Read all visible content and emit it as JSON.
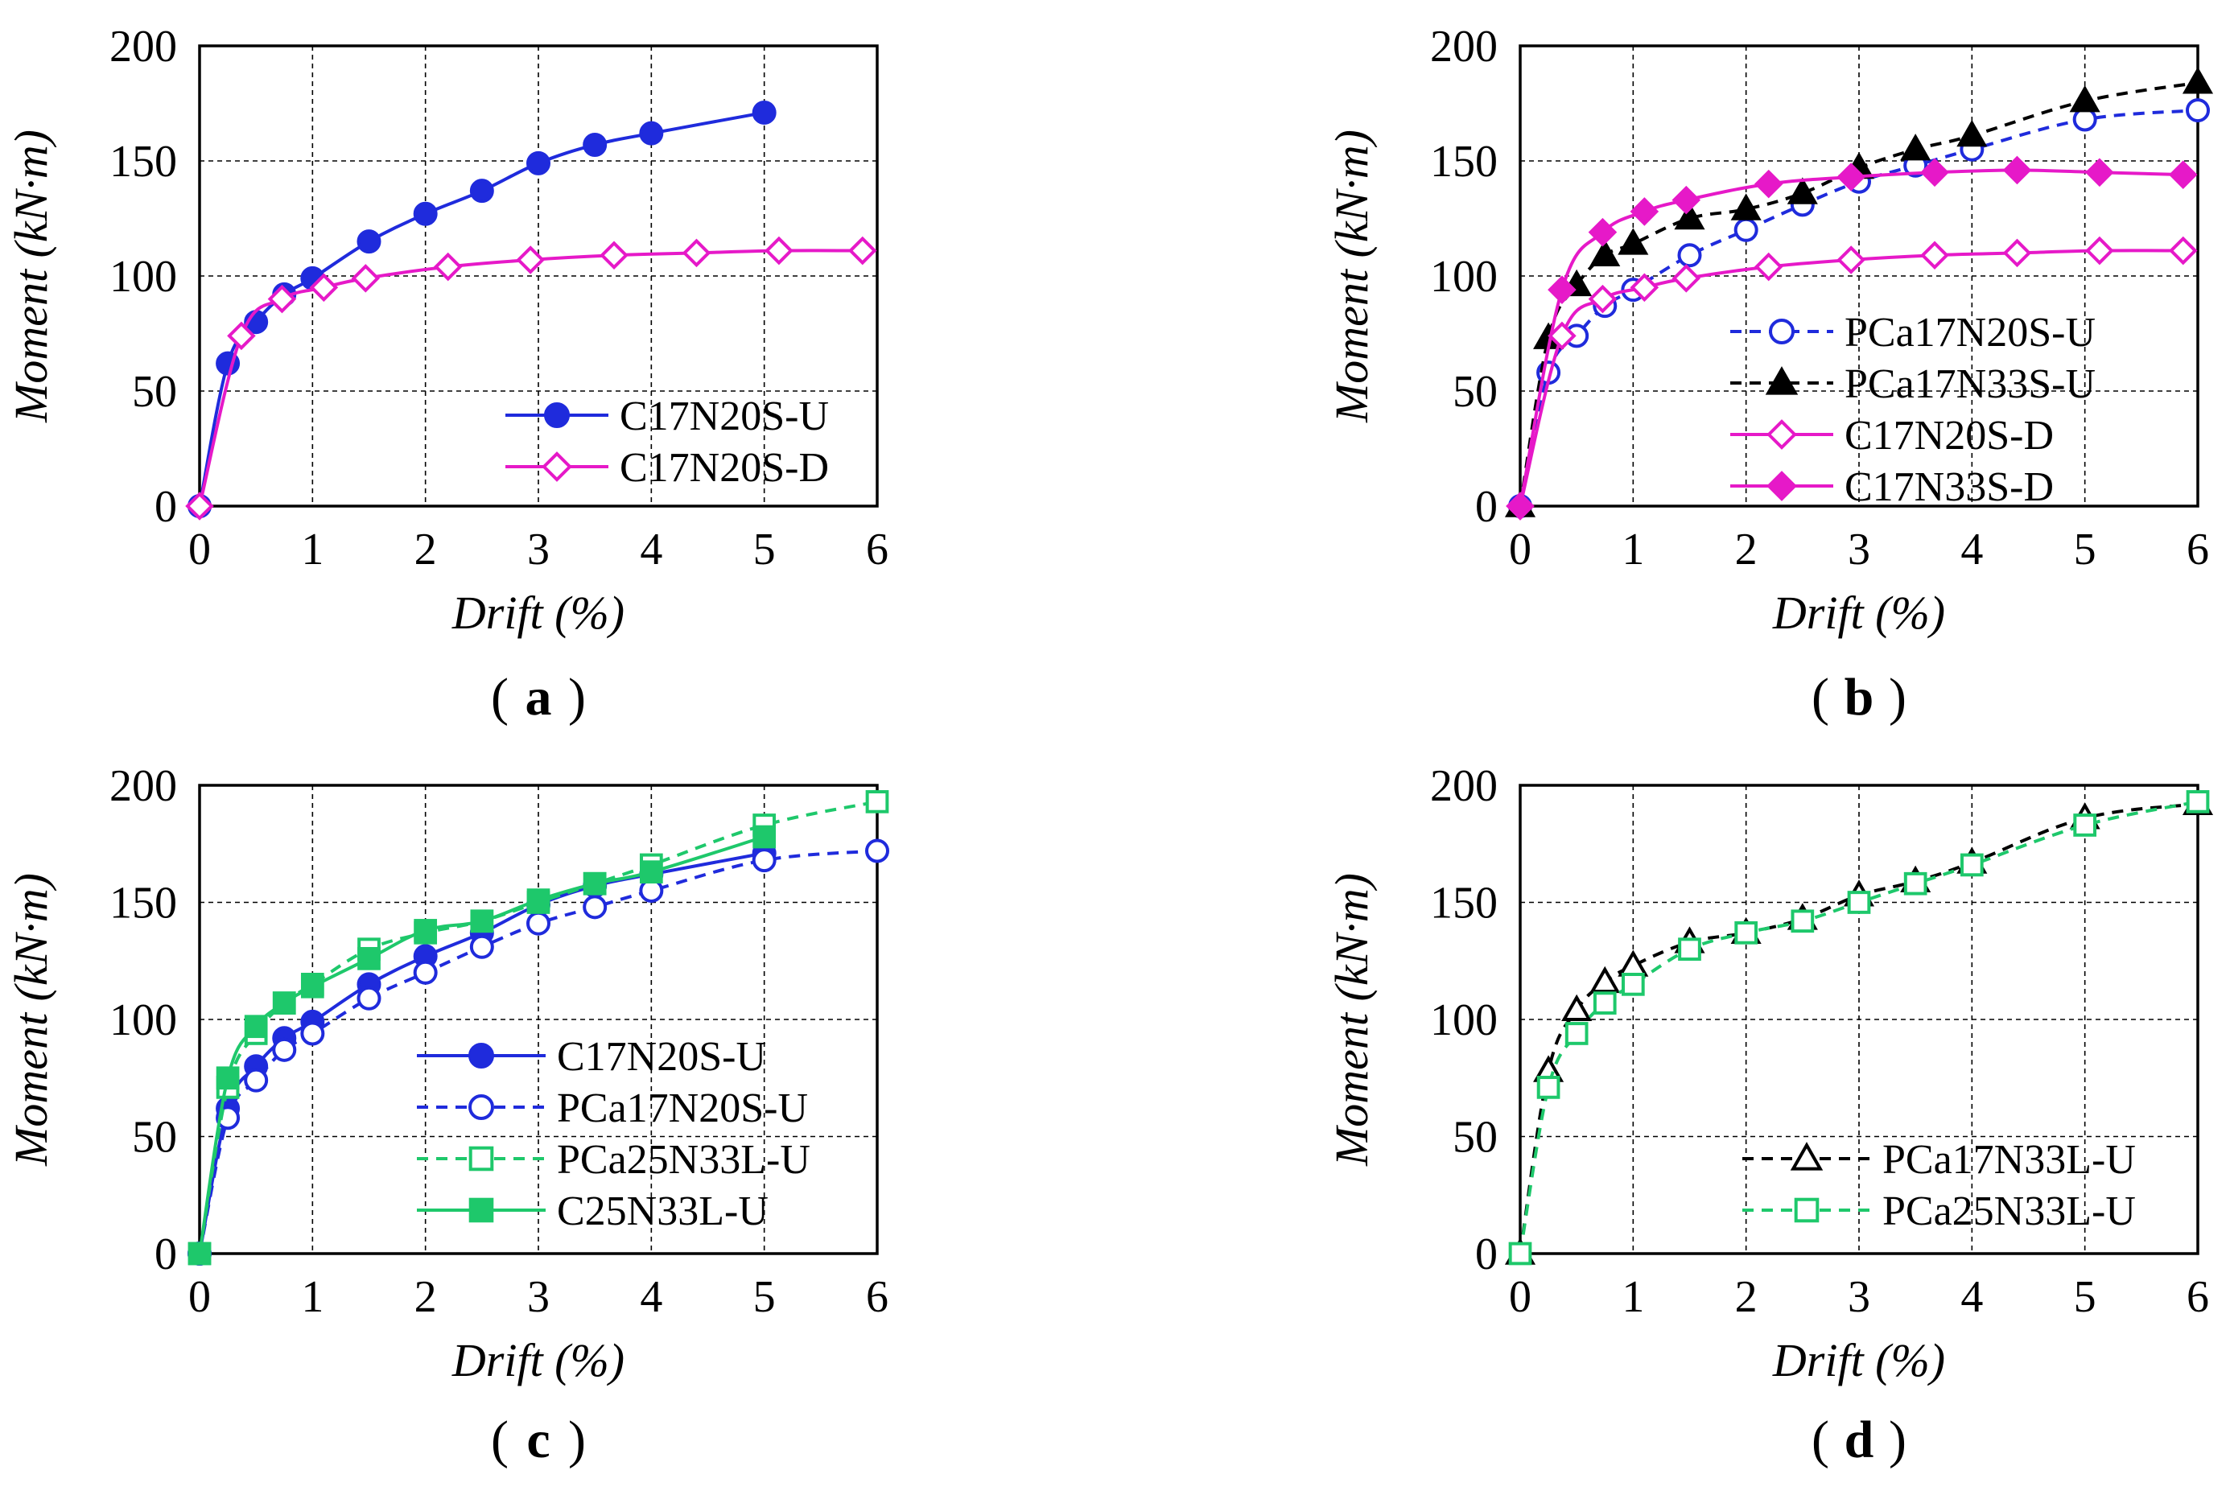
{
  "figure": {
    "background": "#ffffff",
    "colors": {
      "blue": "#1f2bdc",
      "magenta": "#e619c8",
      "black": "#000000",
      "green": "#1ec86b"
    }
  },
  "chart_data": [
    {
      "id": "a",
      "type": "line",
      "panel_label": "a",
      "xlabel": "Drift (%)",
      "ylabel": "Moment (kN·m)",
      "xlim": [
        0,
        6
      ],
      "ylim": [
        0,
        200
      ],
      "xticks": [
        "0",
        "1",
        "2",
        "3",
        "4",
        "5",
        "6"
      ],
      "yticks": [
        "0",
        "50",
        "100",
        "150",
        "200"
      ],
      "grid": true,
      "legend_position": "bottom-right",
      "series": [
        {
          "name": "C17N20S-U",
          "color": "#1f2bdc",
          "dash": "solid",
          "marker": "circle",
          "fill": "filled",
          "x": [
            0,
            0.25,
            0.5,
            0.75,
            1,
            1.5,
            2,
            2.5,
            3,
            3.5,
            4,
            5
          ],
          "y": [
            0,
            62,
            80,
            92,
            99,
            115,
            127,
            137,
            149,
            157,
            162,
            171
          ]
        },
        {
          "name": "C17N20S-D",
          "color": "#e619c8",
          "dash": "solid",
          "marker": "diamond",
          "fill": "open",
          "x": [
            0,
            0.37,
            0.73,
            1.1,
            1.47,
            2.2,
            2.93,
            3.67,
            4.4,
            5.13,
            5.87
          ],
          "y": [
            0,
            74,
            90,
            95,
            99,
            104,
            107,
            109,
            110,
            111,
            111
          ]
        }
      ]
    },
    {
      "id": "b",
      "type": "line",
      "panel_label": "b",
      "xlabel": "Drift (%)",
      "ylabel": "Moment (kN·m)",
      "xlim": [
        0,
        6
      ],
      "ylim": [
        0,
        200
      ],
      "xticks": [
        "0",
        "1",
        "2",
        "3",
        "4",
        "5",
        "6"
      ],
      "yticks": [
        "0",
        "50",
        "100",
        "150",
        "200"
      ],
      "grid": true,
      "legend_position": "bottom-right",
      "series": [
        {
          "name": "PCa17N20S-U",
          "color": "#1f2bdc",
          "dash": "dashed",
          "marker": "circle",
          "fill": "open",
          "x": [
            0,
            0.25,
            0.5,
            0.75,
            1,
            1.5,
            2,
            2.5,
            3,
            3.5,
            4,
            5,
            6
          ],
          "y": [
            0,
            58,
            74,
            87,
            94,
            109,
            120,
            131,
            141,
            148,
            155,
            168,
            172
          ]
        },
        {
          "name": "PCa17N33S-U",
          "color": "#000000",
          "dash": "dashed",
          "marker": "triangle",
          "fill": "filled",
          "x": [
            0,
            0.25,
            0.5,
            0.75,
            1,
            1.5,
            2,
            2.5,
            3,
            3.5,
            4,
            5,
            6
          ],
          "y": [
            0,
            73,
            96,
            109,
            114,
            125,
            129,
            136,
            147,
            155,
            161,
            176,
            184
          ]
        },
        {
          "name": "C17N20S-D",
          "color": "#e619c8",
          "dash": "solid",
          "marker": "diamond",
          "fill": "open",
          "x": [
            0,
            0.37,
            0.73,
            1.1,
            1.47,
            2.2,
            2.93,
            3.67,
            4.4,
            5.13,
            5.87
          ],
          "y": [
            0,
            74,
            90,
            95,
            99,
            104,
            107,
            109,
            110,
            111,
            111
          ]
        },
        {
          "name": "C17N33S-D",
          "color": "#e619c8",
          "dash": "solid",
          "marker": "diamond",
          "fill": "filled",
          "x": [
            0,
            0.37,
            0.73,
            1.1,
            1.47,
            2.2,
            2.93,
            3.67,
            4.4,
            5.13,
            5.87
          ],
          "y": [
            0,
            94,
            119,
            128,
            133,
            140,
            143,
            145,
            146,
            145,
            144
          ]
        }
      ]
    },
    {
      "id": "c",
      "type": "line",
      "panel_label": "c",
      "xlabel": "Drift (%)",
      "ylabel": "Moment (kN·m)",
      "xlim": [
        0,
        6
      ],
      "ylim": [
        0,
        200
      ],
      "xticks": [
        "0",
        "1",
        "2",
        "3",
        "4",
        "5",
        "6"
      ],
      "yticks": [
        "0",
        "50",
        "100",
        "150",
        "200"
      ],
      "grid": true,
      "legend_position": "bottom-right",
      "series": [
        {
          "name": "C17N20S-U",
          "color": "#1f2bdc",
          "dash": "solid",
          "marker": "circle",
          "fill": "filled",
          "x": [
            0,
            0.25,
            0.5,
            0.75,
            1,
            1.5,
            2,
            2.5,
            3,
            3.5,
            4,
            5
          ],
          "y": [
            0,
            62,
            80,
            92,
            99,
            115,
            127,
            137,
            149,
            157,
            162,
            171
          ]
        },
        {
          "name": "PCa17N20S-U",
          "color": "#1f2bdc",
          "dash": "dashed",
          "marker": "circle",
          "fill": "open",
          "x": [
            0,
            0.25,
            0.5,
            0.75,
            1,
            1.5,
            2,
            2.5,
            3,
            3.5,
            4,
            5,
            6
          ],
          "y": [
            0,
            58,
            74,
            87,
            94,
            109,
            120,
            131,
            141,
            148,
            155,
            168,
            172
          ]
        },
        {
          "name": "PCa25N33L-U",
          "color": "#1ec86b",
          "dash": "dashed",
          "marker": "square",
          "fill": "open",
          "x": [
            0,
            0.25,
            0.5,
            0.75,
            1,
            1.5,
            2,
            2.5,
            3,
            3.5,
            4,
            5,
            6
          ],
          "y": [
            0,
            71,
            94,
            107,
            115,
            130,
            137,
            142,
            150,
            158,
            166,
            183,
            193
          ]
        },
        {
          "name": "C25N33L-U",
          "color": "#1ec86b",
          "dash": "solid",
          "marker": "square",
          "fill": "filled",
          "x": [
            0,
            0.25,
            0.5,
            0.75,
            1,
            1.5,
            2,
            2.5,
            3,
            3.5,
            4,
            5
          ],
          "y": [
            0,
            75,
            97,
            107,
            114,
            126,
            138,
            142,
            151,
            158,
            163,
            178
          ]
        }
      ]
    },
    {
      "id": "d",
      "type": "line",
      "panel_label": "d",
      "xlabel": "Drift (%)",
      "ylabel": "Moment (kN·m)",
      "xlim": [
        0,
        6
      ],
      "ylim": [
        0,
        200
      ],
      "xticks": [
        "0",
        "1",
        "2",
        "3",
        "4",
        "5",
        "6"
      ],
      "yticks": [
        "0",
        "50",
        "100",
        "150",
        "200"
      ],
      "grid": true,
      "legend_position": "bottom-right",
      "series": [
        {
          "name": "PCa17N33L-U",
          "color": "#000000",
          "dash": "dashed",
          "marker": "triangle",
          "fill": "open",
          "x": [
            0,
            0.25,
            0.5,
            0.75,
            1,
            1.5,
            2,
            2.5,
            3,
            3.5,
            4,
            5,
            6
          ],
          "y": [
            0,
            78,
            104,
            116,
            123,
            133,
            137,
            143,
            153,
            159,
            167,
            186,
            192
          ]
        },
        {
          "name": "PCa25N33L-U",
          "color": "#1ec86b",
          "dash": "dashed",
          "marker": "square",
          "fill": "open",
          "x": [
            0,
            0.25,
            0.5,
            0.75,
            1,
            1.5,
            2,
            2.5,
            3,
            3.5,
            4,
            5,
            6
          ],
          "y": [
            0,
            71,
            94,
            107,
            115,
            130,
            137,
            142,
            150,
            158,
            166,
            183,
            193
          ]
        }
      ]
    }
  ]
}
